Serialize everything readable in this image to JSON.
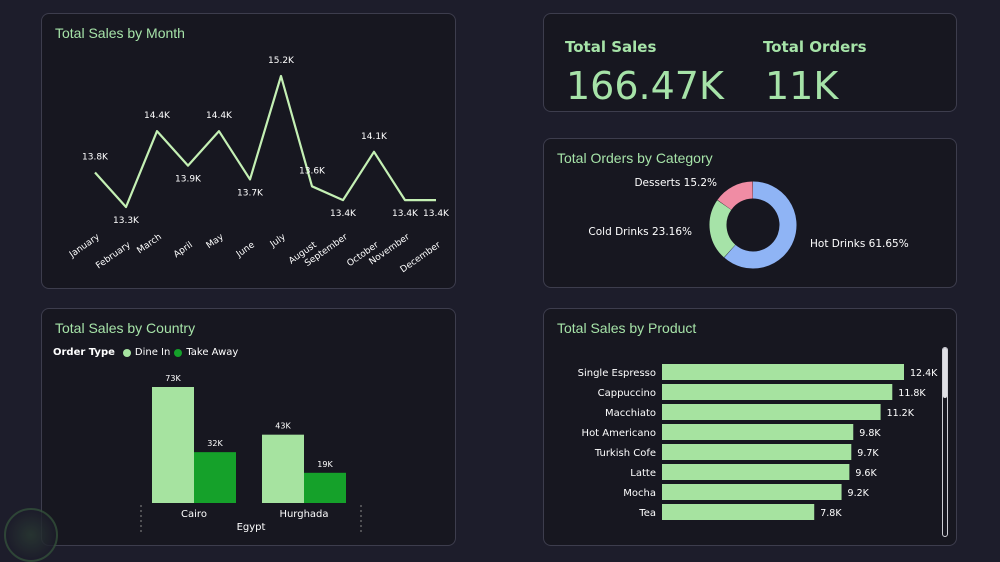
{
  "kpis": {
    "total_sales_label": "Total Sales",
    "total_sales_value": "166.47K",
    "total_orders_label": "Total Orders",
    "total_orders_value": "11K"
  },
  "chart_data": [
    {
      "type": "line",
      "title": "Total Sales by Month",
      "categories": [
        "January",
        "February",
        "March",
        "April",
        "May",
        "June",
        "July",
        "August",
        "September",
        "October",
        "November",
        "December"
      ],
      "values": [
        13.8,
        13.3,
        14.4,
        13.9,
        14.4,
        13.7,
        15.2,
        13.6,
        13.4,
        14.1,
        13.4,
        13.4
      ],
      "labels": [
        "13.8K",
        "13.3K",
        "14.4K",
        "13.9K",
        "14.4K",
        "13.7K",
        "15.2K",
        "13.6K",
        "13.4K",
        "14.1K",
        "13.4K",
        "13.4K"
      ],
      "color": "#c4f0b4"
    },
    {
      "type": "pie",
      "title": "Total Orders by Category",
      "categories": [
        "Hot Drinks",
        "Cold Drinks",
        "Desserts"
      ],
      "values": [
        61.65,
        23.16,
        15.2
      ],
      "labels": [
        "Hot Drinks 61.65%",
        "Cold Drinks 23.16%",
        "Desserts 15.2%"
      ],
      "colors": [
        "#8fb4f5",
        "#a6e3a8",
        "#f08ca4"
      ]
    },
    {
      "type": "bar",
      "title": "Total Sales by Country",
      "legend_title": "Order Type",
      "categories": [
        "Cairo",
        "Hurghada"
      ],
      "group_label": "Egypt",
      "series": [
        {
          "name": "Dine In",
          "values": [
            73,
            43
          ],
          "labels": [
            "73K",
            "43K"
          ],
          "color": "#a6e3a0"
        },
        {
          "name": "Take Away",
          "values": [
            32,
            19
          ],
          "labels": [
            "32K",
            "19K"
          ],
          "color": "#15a12a"
        }
      ]
    },
    {
      "type": "bar",
      "orientation": "horizontal",
      "title": "Total Sales by Product",
      "categories": [
        "Single Espresso",
        "Cappuccino",
        "Macchiato",
        "Hot Americano",
        "Turkish Cofe",
        "Latte",
        "Mocha",
        "Tea"
      ],
      "values": [
        12.4,
        11.8,
        11.2,
        9.8,
        9.7,
        9.6,
        9.2,
        7.8
      ],
      "labels": [
        "12.4K",
        "11.8K",
        "11.2K",
        "9.8K",
        "9.7K",
        "9.6K",
        "9.2K",
        "7.8K"
      ],
      "color": "#a6e3a0"
    }
  ]
}
